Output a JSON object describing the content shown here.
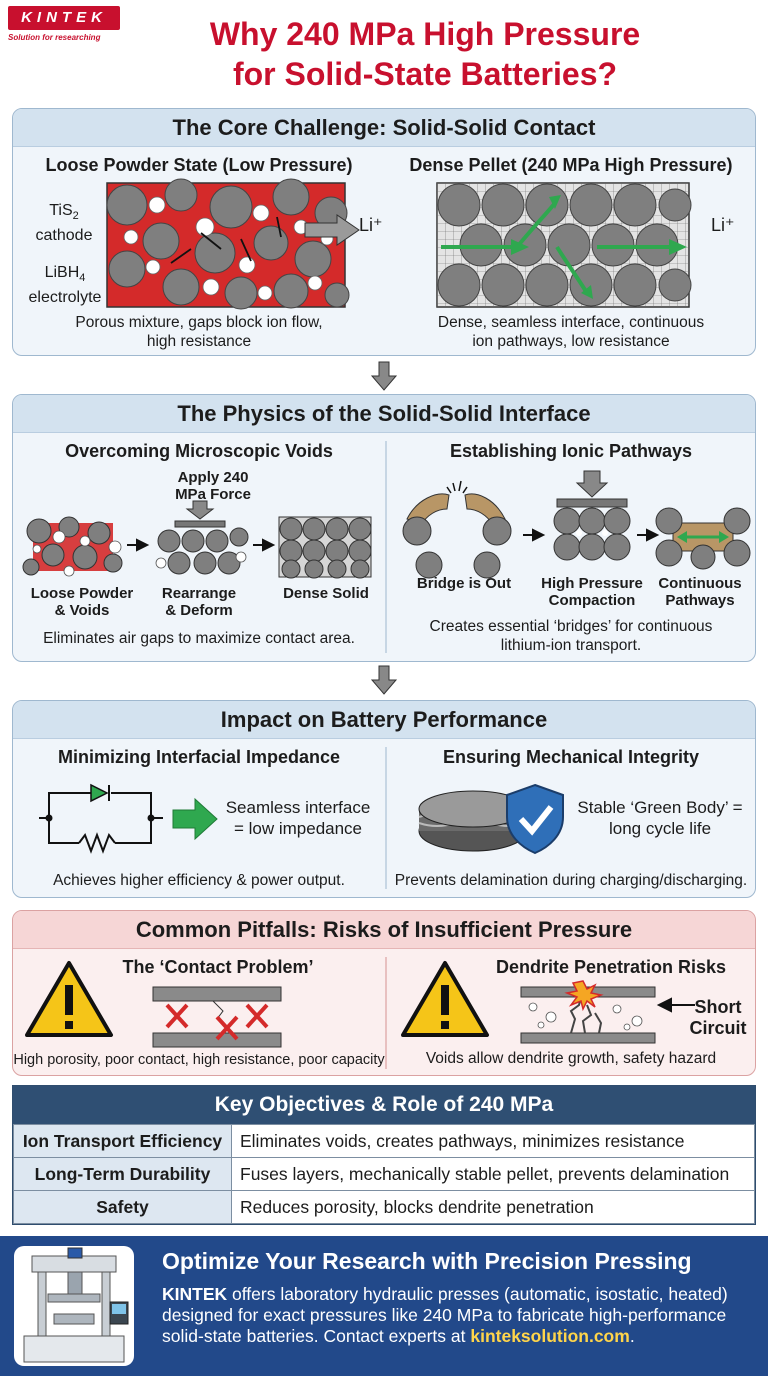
{
  "brand": {
    "name": "KINTEK",
    "tagline": "Solution for researching"
  },
  "title_line1": "Why 240 MPa High Pressure",
  "title_line2": "for Solid-State Batteries?",
  "core": {
    "title": "The Core Challenge: Solid-Solid Contact",
    "left_heading": "Loose Powder State (Low Pressure)",
    "right_heading": "Dense Pellet (240 MPa High Pressure)",
    "label_tis2_main": "TiS",
    "label_tis2_sub": "2",
    "label_cathode": "cathode",
    "label_libh4_main": "LiBH",
    "label_libh4_sub": "4",
    "label_electrolyte": "electrolyte",
    "li_ion": "Li⁺",
    "left_caption_1": "Porous mixture, gaps block ion flow,",
    "left_caption_2": "high resistance",
    "right_caption_1": "Dense, seamless interface, continuous",
    "right_caption_2": "ion pathways, low resistance"
  },
  "physics": {
    "title": "The Physics of the Solid-Solid Interface",
    "left_heading": "Overcoming Microscopic Voids",
    "force_1": "Apply 240",
    "force_2": "MPa Force",
    "step1_1": "Loose Powder",
    "step1_2": "& Voids",
    "step2_1": "Rearrange",
    "step2_2": "& Deform",
    "step3": "Dense Solid",
    "left_caption": "Eliminates air gaps to maximize contact area.",
    "right_heading": "Establishing Ionic Pathways",
    "r_step1": "Bridge is Out",
    "r_step2_1": "High Pressure",
    "r_step2_2": "Compaction",
    "r_step3_1": "Continuous",
    "r_step3_2": "Pathways",
    "right_caption_1": "Creates essential ‘bridges’ for continuous",
    "right_caption_2": "lithium-ion transport."
  },
  "impact": {
    "title": "Impact on Battery Performance",
    "left_heading": "Minimizing Interfacial Impedance",
    "left_text_1": "Seamless interface",
    "left_text_2": "= low impedance",
    "left_caption": "Achieves higher efficiency & power output.",
    "right_heading": "Ensuring Mechanical Integrity",
    "right_text_1": "Stable ‘Green Body’ =",
    "right_text_2": "long cycle life",
    "right_caption": "Prevents delamination during charging/discharging."
  },
  "pitfalls": {
    "title": "Common Pitfalls: Risks of Insufficient Pressure",
    "left_heading": "The ‘Contact Problem’",
    "left_caption": "High porosity, poor contact, high resistance, poor capacity",
    "right_heading": "Dendrite Penetration Risks",
    "short_1": "Short",
    "short_2": "Circuit",
    "right_caption": "Voids allow dendrite growth, safety hazard"
  },
  "objectives": {
    "title": "Key Objectives & Role of 240 MPa",
    "rows": [
      {
        "key": "Ion Transport Efficiency",
        "value": "Eliminates voids, creates pathways, minimizes resistance"
      },
      {
        "key": "Long-Term Durability",
        "value": "Fuses layers, mechanically stable pellet, prevents delamination"
      },
      {
        "key": "Safety",
        "value": "Reduces porosity, blocks dendrite penetration"
      }
    ]
  },
  "footer": {
    "title": "Optimize Your Research with Precision Pressing",
    "brand": "KINTEK",
    "body_1": " offers laboratory hydraulic presses (automatic, isostatic, heated)",
    "body_2": "designed for exact pressures like 240 MPa to fabricate high-performance",
    "body_3": "solid-state batteries. Contact experts at ",
    "link": "kinteksolution.com",
    "end": "."
  },
  "colors": {
    "accent_red": "#c8102e",
    "electrolyte_red": "#d42a2a",
    "particle_gray": "#7f7f7f",
    "path_green": "#2fa84f",
    "footer_blue": "#22498a",
    "table_head": "#2f4f73"
  },
  "icons": [
    "down-arrow-icon",
    "warning-icon",
    "shield-check-icon",
    "diode-icon",
    "resistor-icon",
    "press-machine-icon",
    "spark-icon"
  ]
}
